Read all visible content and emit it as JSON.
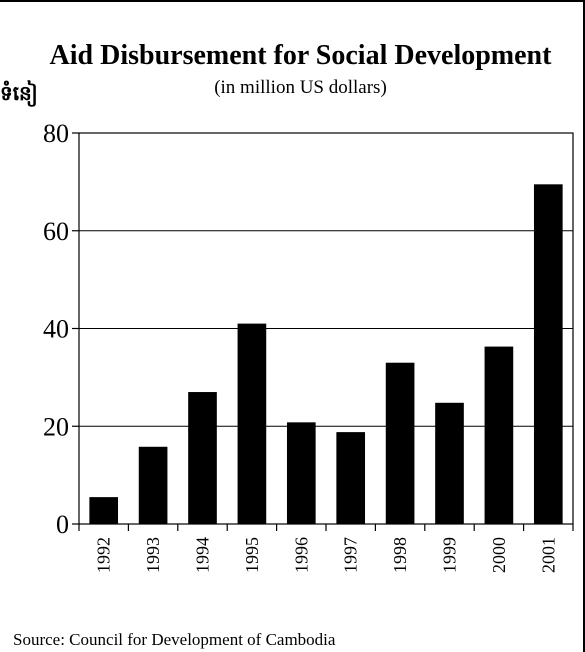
{
  "side_mark": "ទំនៀ",
  "footer": {
    "source": "Source: Council for Development of Cambodia"
  },
  "chart_data": {
    "type": "bar",
    "title": "Aid Disbursement for Social Development",
    "subtitle": "(in million US dollars)",
    "xlabel": "",
    "ylabel": "",
    "ylim": [
      0,
      80
    ],
    "yticks": [
      0,
      20,
      40,
      60,
      80
    ],
    "grid": true,
    "categories": [
      "1992",
      "1993",
      "1994",
      "1995",
      "1996",
      "1997",
      "1998",
      "1999",
      "2000",
      "2001"
    ],
    "values": [
      5.5,
      15.8,
      27,
      41,
      20.8,
      18.8,
      33,
      24.8,
      36.3,
      69.5
    ],
    "bar_color": "#000000"
  }
}
